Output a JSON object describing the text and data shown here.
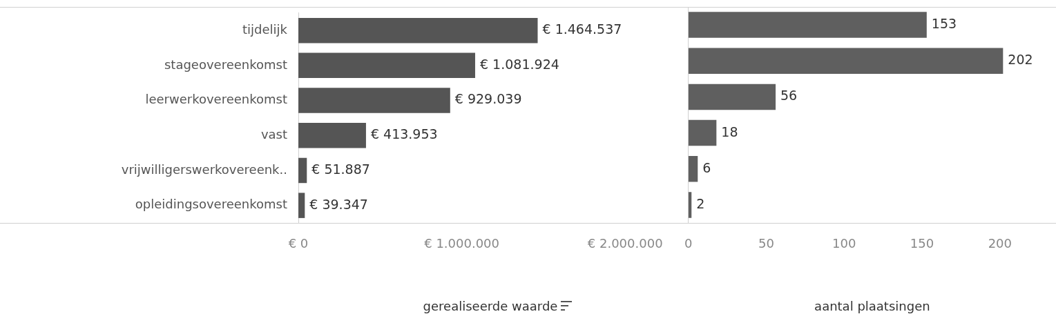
{
  "chart_data": [
    {
      "type": "bar",
      "orientation": "horizontal",
      "xlabel": "gerealiseerde waarde",
      "categories": [
        "tijdelijk",
        "stageovereenkomst",
        "leerwerkovereenkomst",
        "vast",
        "vrijwilligerswerkovereenk..",
        "opleidingsovereenkomst"
      ],
      "values": [
        1464537,
        1081924,
        929039,
        413953,
        51887,
        39347
      ],
      "value_labels": [
        "€ 1.464.537",
        "€ 1.081.924",
        "€ 929.039",
        "€ 413.953",
        "€ 51.887",
        "€ 39.347"
      ],
      "color": "#555555",
      "xlim": [
        0,
        2350000
      ],
      "xticks": [
        {
          "value": 0,
          "label": "€ 0"
        },
        {
          "value": 1000000,
          "label": "€ 1.000.000"
        },
        {
          "value": 2000000,
          "label": "€ 2.000.000"
        }
      ]
    },
    {
      "type": "bar",
      "orientation": "horizontal",
      "xlabel": "aantal plaatsingen",
      "categories": [
        null,
        null,
        null,
        null,
        null,
        null
      ],
      "values": [
        153,
        202,
        56,
        18,
        6,
        2
      ],
      "data_labels": true,
      "color": "#5f5f5f",
      "xlim": [
        0,
        236
      ],
      "xticks": [
        0,
        50,
        100,
        150,
        200
      ],
      "tick_labels": "x"
    }
  ]
}
